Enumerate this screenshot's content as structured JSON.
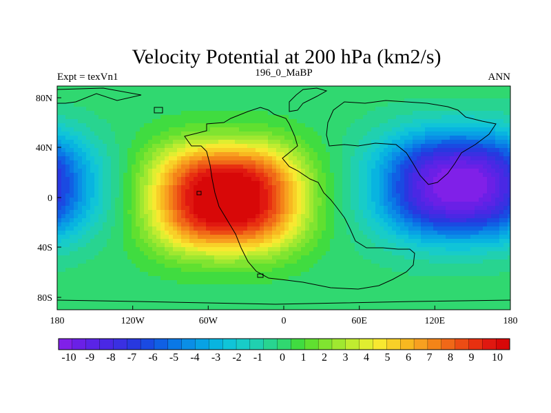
{
  "chart_data": {
    "type": "heatmap",
    "title": "Velocity Potential at 200 hPa (km2/s)",
    "subtitle_left": "Expt = texVn1",
    "subtitle_center": "196_0_MaBP",
    "subtitle_right": "ANN",
    "x_ticks": [
      "180",
      "120W",
      "60W",
      "0",
      "60E",
      "120E",
      "180"
    ],
    "x_tick_values": [
      -180,
      -120,
      -60,
      0,
      60,
      120,
      180
    ],
    "y_ticks": [
      "80N",
      "40N",
      "0",
      "40S",
      "80S"
    ],
    "y_tick_values": [
      80,
      40,
      0,
      -40,
      -80
    ],
    "xlim": [
      -180,
      180
    ],
    "ylim": [
      -90,
      90
    ],
    "colorbar_labels": [
      "-10",
      "-9",
      "-8",
      "-7",
      "-6",
      "-5",
      "-4",
      "-3",
      "-2",
      "-1",
      "0",
      "1",
      "2",
      "3",
      "4",
      "5",
      "6",
      "7",
      "8",
      "9",
      "10"
    ],
    "colorbar_min": -10,
    "colorbar_max": 10,
    "colorbar_colors": [
      "#8020e8",
      "#6a20e6",
      "#5a24e6",
      "#4a28e4",
      "#3a30e2",
      "#2838e0",
      "#1a4ae2",
      "#1060e4",
      "#0a78e6",
      "#0a8ee6",
      "#08a2e4",
      "#08b4e0",
      "#10c4d8",
      "#18ccc8",
      "#20d0b0",
      "#28d490",
      "#30d870",
      "#40dc40",
      "#60e030",
      "#80e430",
      "#a0e830",
      "#c0ec30",
      "#e0ee30",
      "#f8e830",
      "#f8d028",
      "#f8b820",
      "#f8a020",
      "#f48418",
      "#f06818",
      "#ec4c14",
      "#e83010",
      "#e01810",
      "#d80808"
    ],
    "field_features": [
      {
        "type": "maximum",
        "lon": -45,
        "lat": 0,
        "value": 10
      },
      {
        "type": "minimum",
        "lon": 140,
        "lat": 10,
        "value": -9.5
      }
    ]
  }
}
